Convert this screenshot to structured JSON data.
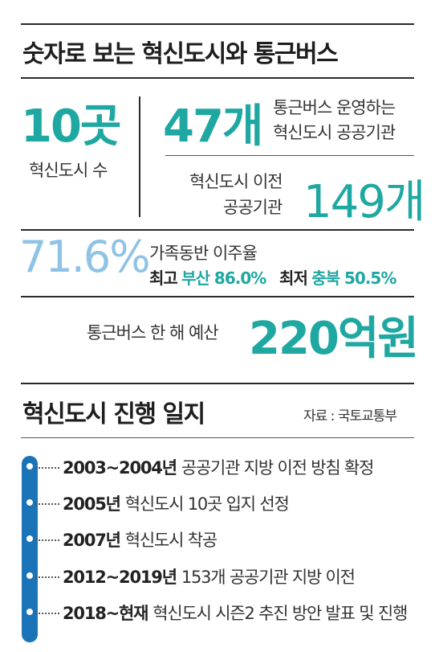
{
  "section1": {
    "title": "숫자로 보는 혁신도시와 통근버스",
    "cities_count": "10곳",
    "cities_label": "혁신도시 수",
    "bus_agencies_count": "47개",
    "bus_agencies_label_1": "통근버스 운영하는",
    "bus_agencies_label_2": "혁신도시 공공기관",
    "relocated_label_1": "혁신도시 이전",
    "relocated_label_2": "공공기관",
    "relocated_count": "149개",
    "family_rate": "71.6%",
    "family_rate_label": "가족동반 이주율",
    "max_label": "최고",
    "max_region": "부산 86.0%",
    "min_label": "최저",
    "min_region": "충북 50.5%",
    "budget_label": "통근버스 한 해 예산",
    "budget_value": "220억원"
  },
  "section2": {
    "title": "혁신도시 진행 일지",
    "source": "자료 : 국토교통부",
    "timeline": [
      {
        "year": "2003~2004년",
        "text": "공공기관 지방 이전 방침 확정"
      },
      {
        "year": "2005년",
        "text": "혁신도시 10곳 입지 선정"
      },
      {
        "year": "2007년",
        "text": "혁신도시 착공"
      },
      {
        "year": "2012~2019년",
        "text": "153개 공공기관 지방 이전"
      },
      {
        "year": "2018~현재",
        "text": "혁신도시 시즌2 추진 방안 발표 및 진행"
      }
    ]
  },
  "colors": {
    "teal": "#1fa7a2",
    "light_blue": "#8ec3e6",
    "timeline_blue": "#1b74b8"
  }
}
